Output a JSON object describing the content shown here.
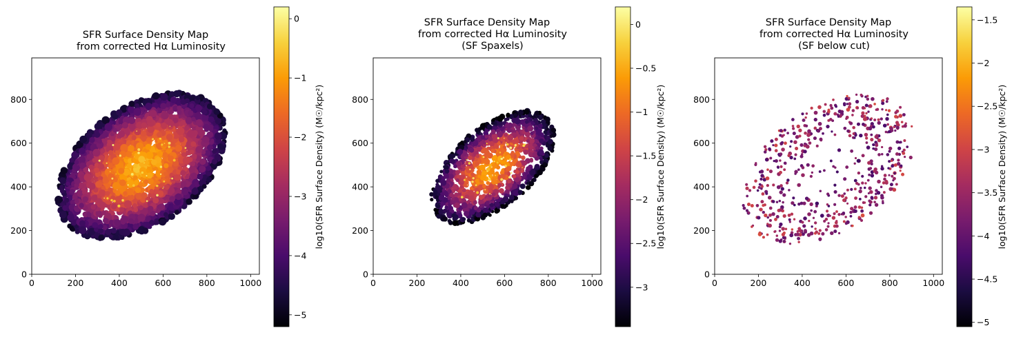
{
  "colors": {
    "background": "#ffffff",
    "axis": "#000000",
    "colormap_stops": [
      "#000004",
      "#1b0c41",
      "#4a0c6b",
      "#781c6d",
      "#a52c60",
      "#cf4446",
      "#ed6925",
      "#fb9b06",
      "#f7d13d",
      "#fcffa4"
    ]
  },
  "chart_data": [
    {
      "type": "heatmap",
      "title": "SFR Surface Density Map\n   from corrected Hα Luminosity",
      "xlabel": "",
      "ylabel": "",
      "xlim": [
        0,
        1040
      ],
      "ylim": [
        0,
        990
      ],
      "x_ticks": [
        0,
        200,
        400,
        600,
        800,
        1000
      ],
      "y_ticks": [
        0,
        200,
        400,
        600,
        800
      ],
      "colorbar": {
        "label": "log10(SFR Surface Density) (M☉/kpc²)",
        "range": [
          -5.2,
          0.2
        ],
        "ticks": [
          0,
          -1,
          -2,
          -3,
          -4,
          -5
        ]
      },
      "map": {
        "shape": "full",
        "center": [
          500,
          495
        ],
        "semi_major": 430,
        "semi_minor": 270,
        "angle_deg": 36,
        "value_range": [
          -4.5,
          -0.5
        ]
      }
    },
    {
      "type": "heatmap",
      "title": "SFR Surface Density Map\n   from corrected Hα Luminosity\n   (SF Spaxels)",
      "xlabel": "",
      "ylabel": "",
      "xlim": [
        0,
        1040
      ],
      "ylim": [
        0,
        990
      ],
      "x_ticks": [
        0,
        200,
        400,
        600,
        800,
        1000
      ],
      "y_ticks": [
        0,
        200,
        400,
        600,
        800
      ],
      "colorbar": {
        "label": "log10(SFR Surface Density) (M☉/kpc²)",
        "range": [
          -3.45,
          0.2
        ],
        "ticks": [
          0.0,
          -0.5,
          -1.0,
          -1.5,
          -2.0,
          -2.5,
          -3.0
        ]
      },
      "map": {
        "shape": "inner",
        "center": [
          545,
          490
        ],
        "semi_major": 340,
        "semi_minor": 180,
        "angle_deg": 40,
        "value_range": [
          -3.2,
          -0.3
        ]
      }
    },
    {
      "type": "heatmap",
      "title": "SFR Surface Density Map\n   from corrected Hα Luminosity\n   (SF below cut)",
      "xlabel": "",
      "ylabel": "",
      "xlim": [
        0,
        1040
      ],
      "ylim": [
        0,
        990
      ],
      "x_ticks": [
        0,
        200,
        400,
        600,
        800,
        1000
      ],
      "y_ticks": [
        0,
        200,
        400,
        600,
        800
      ],
      "colorbar": {
        "label": "log10(SFR Surface Density) (M☉/kpc²)",
        "range": [
          -5.05,
          -1.35
        ],
        "ticks": [
          -1.5,
          -2.0,
          -2.5,
          -3.0,
          -3.5,
          -4.0,
          -4.5,
          -5.0
        ]
      },
      "map": {
        "shape": "sparse",
        "center": [
          520,
          480
        ],
        "semi_major": 440,
        "semi_minor": 280,
        "angle_deg": 36,
        "value_range": [
          -4.9,
          -2.8
        ]
      }
    }
  ]
}
